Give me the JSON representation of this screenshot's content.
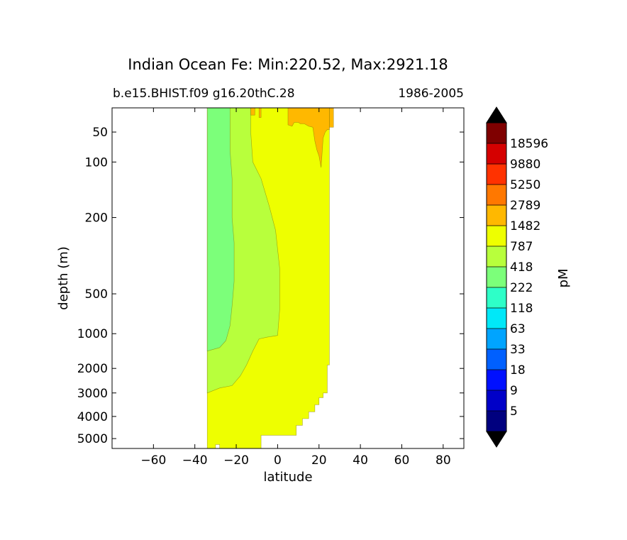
{
  "chart_data": {
    "type": "heatmap",
    "title": "Indian Ocean Fe: Min:220.52, Max:2921.18",
    "subtitle_left": "b.e15.BHIST.f09 g16.20thC.28",
    "subtitle_right": "1986-2005",
    "xlabel": "latitude",
    "ylabel": "depth (m)",
    "xlim": [
      -80,
      90
    ],
    "ylim_depth": [
      0,
      5500
    ],
    "x_ticks": [
      -60,
      -40,
      -20,
      0,
      20,
      40,
      60,
      80
    ],
    "x_tick_labels": [
      "−60",
      "−40",
      "−20",
      "0",
      "20",
      "40",
      "60",
      "80"
    ],
    "y_ticks": [
      50,
      100,
      200,
      500,
      1000,
      2000,
      3000,
      4000,
      5000
    ],
    "y_tick_labels": [
      "50",
      "100",
      "200",
      "500",
      "1000",
      "2000",
      "3000",
      "4000",
      "5000"
    ],
    "depth_axis_anchors": [
      {
        "depth": 0,
        "pos": 0
      },
      {
        "depth": 50,
        "pos": 0.071
      },
      {
        "depth": 100,
        "pos": 0.159
      },
      {
        "depth": 200,
        "pos": 0.322
      },
      {
        "depth": 500,
        "pos": 0.546
      },
      {
        "depth": 1000,
        "pos": 0.663
      },
      {
        "depth": 2000,
        "pos": 0.765
      },
      {
        "depth": 3000,
        "pos": 0.837
      },
      {
        "depth": 4000,
        "pos": 0.906
      },
      {
        "depth": 5000,
        "pos": 0.971
      },
      {
        "depth": 5500,
        "pos": 1.0
      }
    ],
    "colorbar": {
      "label": "pM",
      "extend": "both",
      "levels": [
        "5",
        "9",
        "18",
        "33",
        "63",
        "118",
        "222",
        "418",
        "787",
        "1482",
        "2789",
        "5250",
        "9880",
        "18596"
      ],
      "colors": [
        "#00007f",
        "#0000c8",
        "#0010ff",
        "#0060ff",
        "#00a4ff",
        "#00e8f8",
        "#2effc8",
        "#7cff7a",
        "#b8ff3c",
        "#eeff00",
        "#ffb800",
        "#ff7800",
        "#ff3200",
        "#d50000",
        "#7f0000"
      ],
      "under_color": "#000000",
      "over_color": "#000000"
    },
    "regions": [
      {
        "class": "787-1482",
        "color": "#eeff00",
        "boundary": [
          [
            -34,
            0
          ],
          [
            -34,
            5500
          ],
          [
            -30,
            5500
          ],
          [
            -30,
            5300
          ],
          [
            -28,
            5300
          ],
          [
            -28,
            5500
          ],
          [
            -8,
            5500
          ],
          [
            -8,
            4850
          ],
          [
            9,
            4850
          ],
          [
            9,
            4400
          ],
          [
            12,
            4400
          ],
          [
            12,
            4100
          ],
          [
            15,
            4100
          ],
          [
            15,
            3800
          ],
          [
            18,
            3800
          ],
          [
            18,
            3500
          ],
          [
            20,
            3500
          ],
          [
            20,
            3200
          ],
          [
            22,
            3200
          ],
          [
            22,
            3000
          ],
          [
            24,
            3000
          ],
          [
            24,
            1900
          ],
          [
            25,
            1900
          ],
          [
            25,
            0
          ]
        ]
      },
      {
        "class": "418-787",
        "color": "#b8ff3c",
        "boundary": [
          [
            -34,
            0
          ],
          [
            -34,
            3000
          ],
          [
            -28,
            2800
          ],
          [
            -22,
            2700
          ],
          [
            -18,
            2300
          ],
          [
            -15,
            1900
          ],
          [
            -12,
            1500
          ],
          [
            -9,
            1150
          ],
          [
            -5,
            1100
          ],
          [
            0,
            1050
          ],
          [
            1,
            700
          ],
          [
            1,
            400
          ],
          [
            -1,
            250
          ],
          [
            -4,
            180
          ],
          [
            -8,
            130
          ],
          [
            -12,
            100
          ],
          [
            -13,
            50
          ],
          [
            -13,
            0
          ]
        ]
      },
      {
        "class": "222-418",
        "color": "#7cff7a",
        "boundary": [
          [
            -34,
            0
          ],
          [
            -34,
            1500
          ],
          [
            -28,
            1400
          ],
          [
            -25,
            1200
          ],
          [
            -23,
            900
          ],
          [
            -22,
            650
          ],
          [
            -21,
            450
          ],
          [
            -21,
            300
          ],
          [
            -22,
            200
          ],
          [
            -22,
            130
          ],
          [
            -23,
            80
          ],
          [
            -23,
            0
          ]
        ]
      },
      {
        "class": "1482-2789",
        "color": "#ffb800",
        "boundary": [
          [
            5,
            0
          ],
          [
            5,
            35
          ],
          [
            7,
            38
          ],
          [
            8,
            30
          ],
          [
            10,
            30
          ],
          [
            11,
            33
          ],
          [
            13,
            33
          ],
          [
            15,
            38
          ],
          [
            17,
            40
          ],
          [
            18,
            65
          ],
          [
            19,
            80
          ],
          [
            20,
            90
          ],
          [
            21,
            110
          ],
          [
            22,
            60
          ],
          [
            23,
            50
          ],
          [
            24,
            45
          ],
          [
            25,
            45
          ],
          [
            25,
            0
          ]
        ]
      },
      {
        "class": "1482-2789",
        "color": "#ffb800",
        "boundary": [
          [
            -13,
            0
          ],
          [
            -13,
            15
          ],
          [
            -11,
            15
          ],
          [
            -11,
            0
          ]
        ]
      },
      {
        "class": "1482-2789",
        "color": "#ffb800",
        "boundary": [
          [
            -9,
            0
          ],
          [
            -9,
            20
          ],
          [
            -8,
            20
          ],
          [
            -8,
            0
          ]
        ]
      },
      {
        "class": "1482-2789",
        "color": "#ffb800",
        "boundary": [
          [
            25,
            0
          ],
          [
            25,
            40
          ],
          [
            27,
            40
          ],
          [
            27,
            0
          ]
        ]
      }
    ]
  }
}
